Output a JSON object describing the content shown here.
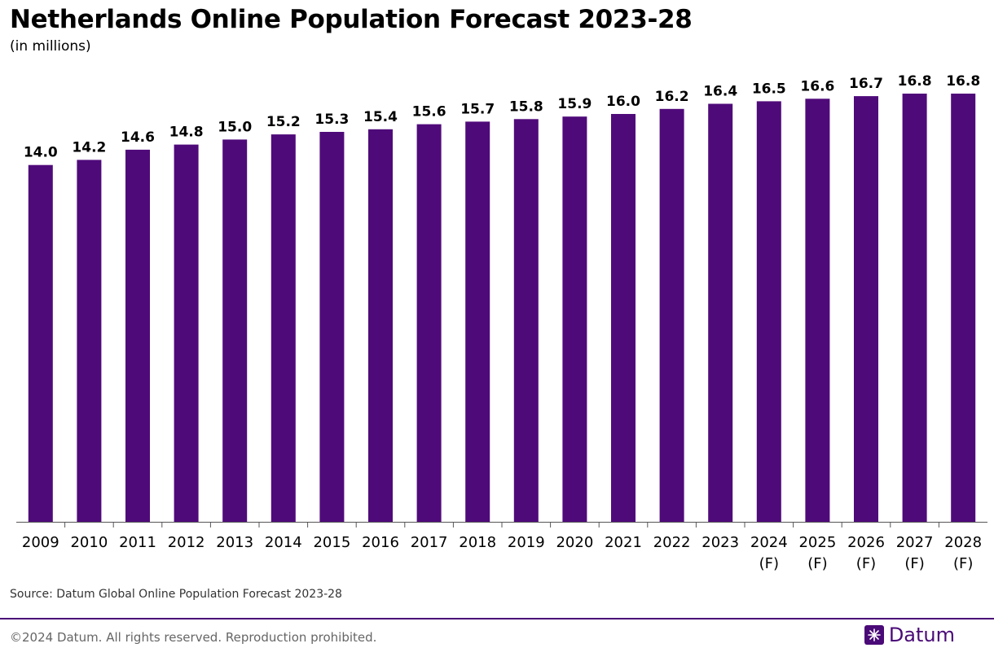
{
  "header": {
    "title": "Netherlands Online Population Forecast 2023-28",
    "subtitle": "(in millions)"
  },
  "footer": {
    "source": "Source: Datum Global Online Population Forecast 2023-28",
    "copyright": "©2024 Datum. All rights reserved. Reproduction prohibited.",
    "brand_name": "Datum",
    "brand_icon": "snowflake-icon"
  },
  "colors": {
    "bar": "#4f0a7a",
    "brand": "#4a0a77"
  },
  "chart_data": {
    "type": "bar",
    "title": "Netherlands Online Population Forecast 2023-28",
    "subtitle": "(in millions)",
    "xlabel": "",
    "ylabel": "",
    "categories": [
      [
        "2009"
      ],
      [
        "2010"
      ],
      [
        "2011"
      ],
      [
        "2012"
      ],
      [
        "2013"
      ],
      [
        "2014"
      ],
      [
        "2015"
      ],
      [
        "2016"
      ],
      [
        "2017"
      ],
      [
        "2018"
      ],
      [
        "2019"
      ],
      [
        "2020"
      ],
      [
        "2021"
      ],
      [
        "2022"
      ],
      [
        "2023"
      ],
      [
        "2024",
        "(F)"
      ],
      [
        "2025",
        "(F)"
      ],
      [
        "2026",
        "(F)"
      ],
      [
        "2027",
        "(F)"
      ],
      [
        "2028",
        "(F)"
      ]
    ],
    "values": [
      14.0,
      14.2,
      14.6,
      14.8,
      15.0,
      15.2,
      15.3,
      15.4,
      15.6,
      15.7,
      15.8,
      15.9,
      16.0,
      16.2,
      16.4,
      16.5,
      16.6,
      16.7,
      16.8,
      16.8
    ],
    "value_labels": [
      "14.0",
      "14.2",
      "14.6",
      "14.8",
      "15.0",
      "15.2",
      "15.3",
      "15.4",
      "15.6",
      "15.7",
      "15.8",
      "15.9",
      "16.0",
      "16.2",
      "16.4",
      "16.5",
      "16.6",
      "16.7",
      "16.8",
      "16.8"
    ],
    "ylim": [
      0,
      16.8
    ],
    "grid": false,
    "legend": "none"
  }
}
